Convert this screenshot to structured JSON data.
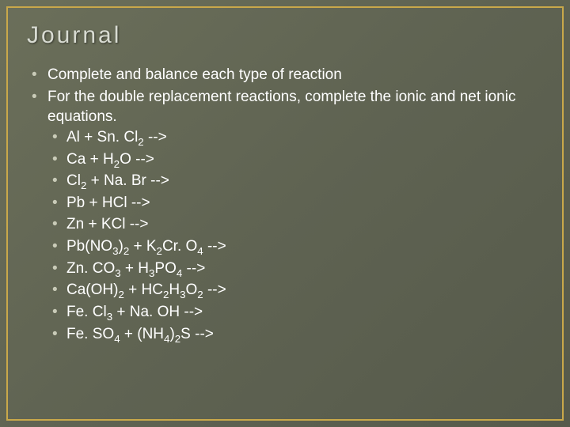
{
  "colors": {
    "background_gradient_start": "#6b6f5a",
    "background_gradient_mid": "#5f6352",
    "background_gradient_end": "#565a4b",
    "border": "#c9a84a",
    "title_text": "#d8dbd2",
    "body_text": "#ffffff",
    "bullet": "#c9cbb8"
  },
  "typography": {
    "title_fontsize": 30,
    "title_letter_spacing": 3,
    "body_fontsize": 19,
    "sub_scale": 0.7
  },
  "title": "Journal",
  "bullets": [
    {
      "text": "Complete and balance each type of reaction"
    },
    {
      "text": "For the double replacement reactions, complete the ionic and net ionic equations."
    }
  ],
  "equations": [
    {
      "tokens": [
        {
          "t": "Al + Sn. Cl"
        },
        {
          "t": "2",
          "sub": true
        },
        {
          "t": " -->"
        }
      ]
    },
    {
      "tokens": [
        {
          "t": "Ca + H"
        },
        {
          "t": "2",
          "sub": true
        },
        {
          "t": "O -->"
        }
      ]
    },
    {
      "tokens": [
        {
          "t": "Cl"
        },
        {
          "t": "2",
          "sub": true
        },
        {
          "t": " + Na. Br -->"
        }
      ]
    },
    {
      "tokens": [
        {
          "t": "Pb + HCl -->"
        }
      ]
    },
    {
      "tokens": [
        {
          "t": "Zn + KCl -->"
        }
      ]
    },
    {
      "tokens": [
        {
          "t": "Pb(NO"
        },
        {
          "t": "3",
          "sub": true
        },
        {
          "t": ")"
        },
        {
          "t": "2",
          "sub": true
        },
        {
          "t": " + K"
        },
        {
          "t": "2",
          "sub": true
        },
        {
          "t": "Cr. O"
        },
        {
          "t": "4",
          "sub": true
        },
        {
          "t": " -->"
        }
      ]
    },
    {
      "tokens": [
        {
          "t": "Zn. CO"
        },
        {
          "t": "3",
          "sub": true
        },
        {
          "t": " + H"
        },
        {
          "t": "3",
          "sub": true
        },
        {
          "t": "PO"
        },
        {
          "t": "4",
          "sub": true
        },
        {
          "t": " -->"
        }
      ]
    },
    {
      "tokens": [
        {
          "t": "Ca(OH)"
        },
        {
          "t": "2",
          "sub": true
        },
        {
          "t": " + HC"
        },
        {
          "t": "2",
          "sub": true
        },
        {
          "t": "H"
        },
        {
          "t": "3",
          "sub": true
        },
        {
          "t": "O"
        },
        {
          "t": "2",
          "sub": true
        },
        {
          "t": " -->"
        }
      ]
    },
    {
      "tokens": [
        {
          "t": "Fe. Cl"
        },
        {
          "t": "3",
          "sub": true
        },
        {
          "t": " + Na. OH -->"
        }
      ]
    },
    {
      "tokens": [
        {
          "t": "Fe. SO"
        },
        {
          "t": "4",
          "sub": true
        },
        {
          "t": " + (NH"
        },
        {
          "t": "4",
          "sub": true
        },
        {
          "t": ")"
        },
        {
          "t": "2",
          "sub": true
        },
        {
          "t": "S -->"
        }
      ]
    }
  ]
}
